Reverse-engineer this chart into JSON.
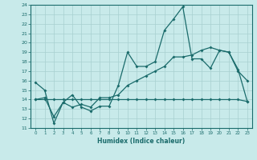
{
  "xlabel": "Humidex (Indice chaleur)",
  "bg_color": "#c8eaea",
  "line_color": "#1a6b6b",
  "grid_color": "#a8d0d0",
  "xmin": 0,
  "xmax": 23,
  "ymin": 11,
  "ymax": 24,
  "line1_x": [
    0,
    1,
    2,
    3,
    4,
    5,
    6,
    7,
    8,
    9,
    10,
    11,
    12,
    13,
    14,
    15,
    16,
    17,
    18,
    19,
    20,
    21,
    22,
    23
  ],
  "line1_y": [
    15.8,
    15.0,
    11.5,
    13.7,
    14.5,
    13.2,
    12.8,
    13.3,
    13.3,
    15.5,
    19.0,
    17.5,
    17.5,
    18.0,
    21.3,
    22.5,
    23.8,
    18.3,
    18.3,
    17.3,
    19.2,
    19.0,
    17.0,
    16.0
  ],
  "line2_x": [
    0,
    1,
    2,
    3,
    4,
    5,
    6,
    7,
    8,
    9,
    10,
    11,
    12,
    13,
    14,
    15,
    16,
    17,
    18,
    19,
    20,
    21,
    22,
    23
  ],
  "line2_y": [
    14.0,
    14.2,
    12.2,
    13.7,
    13.2,
    13.5,
    13.2,
    14.2,
    14.2,
    14.5,
    15.5,
    16.0,
    16.5,
    17.0,
    17.5,
    18.5,
    18.5,
    18.7,
    19.2,
    19.5,
    19.2,
    19.0,
    17.2,
    13.8
  ],
  "line3_x": [
    0,
    1,
    2,
    3,
    4,
    5,
    6,
    7,
    8,
    9,
    10,
    11,
    12,
    13,
    14,
    15,
    16,
    17,
    18,
    19,
    20,
    21,
    22,
    23
  ],
  "line3_y": [
    14.0,
    14.0,
    14.0,
    14.0,
    14.0,
    14.0,
    14.0,
    14.0,
    14.0,
    14.0,
    14.0,
    14.0,
    14.0,
    14.0,
    14.0,
    14.0,
    14.0,
    14.0,
    14.0,
    14.0,
    14.0,
    14.0,
    14.0,
    13.8
  ]
}
